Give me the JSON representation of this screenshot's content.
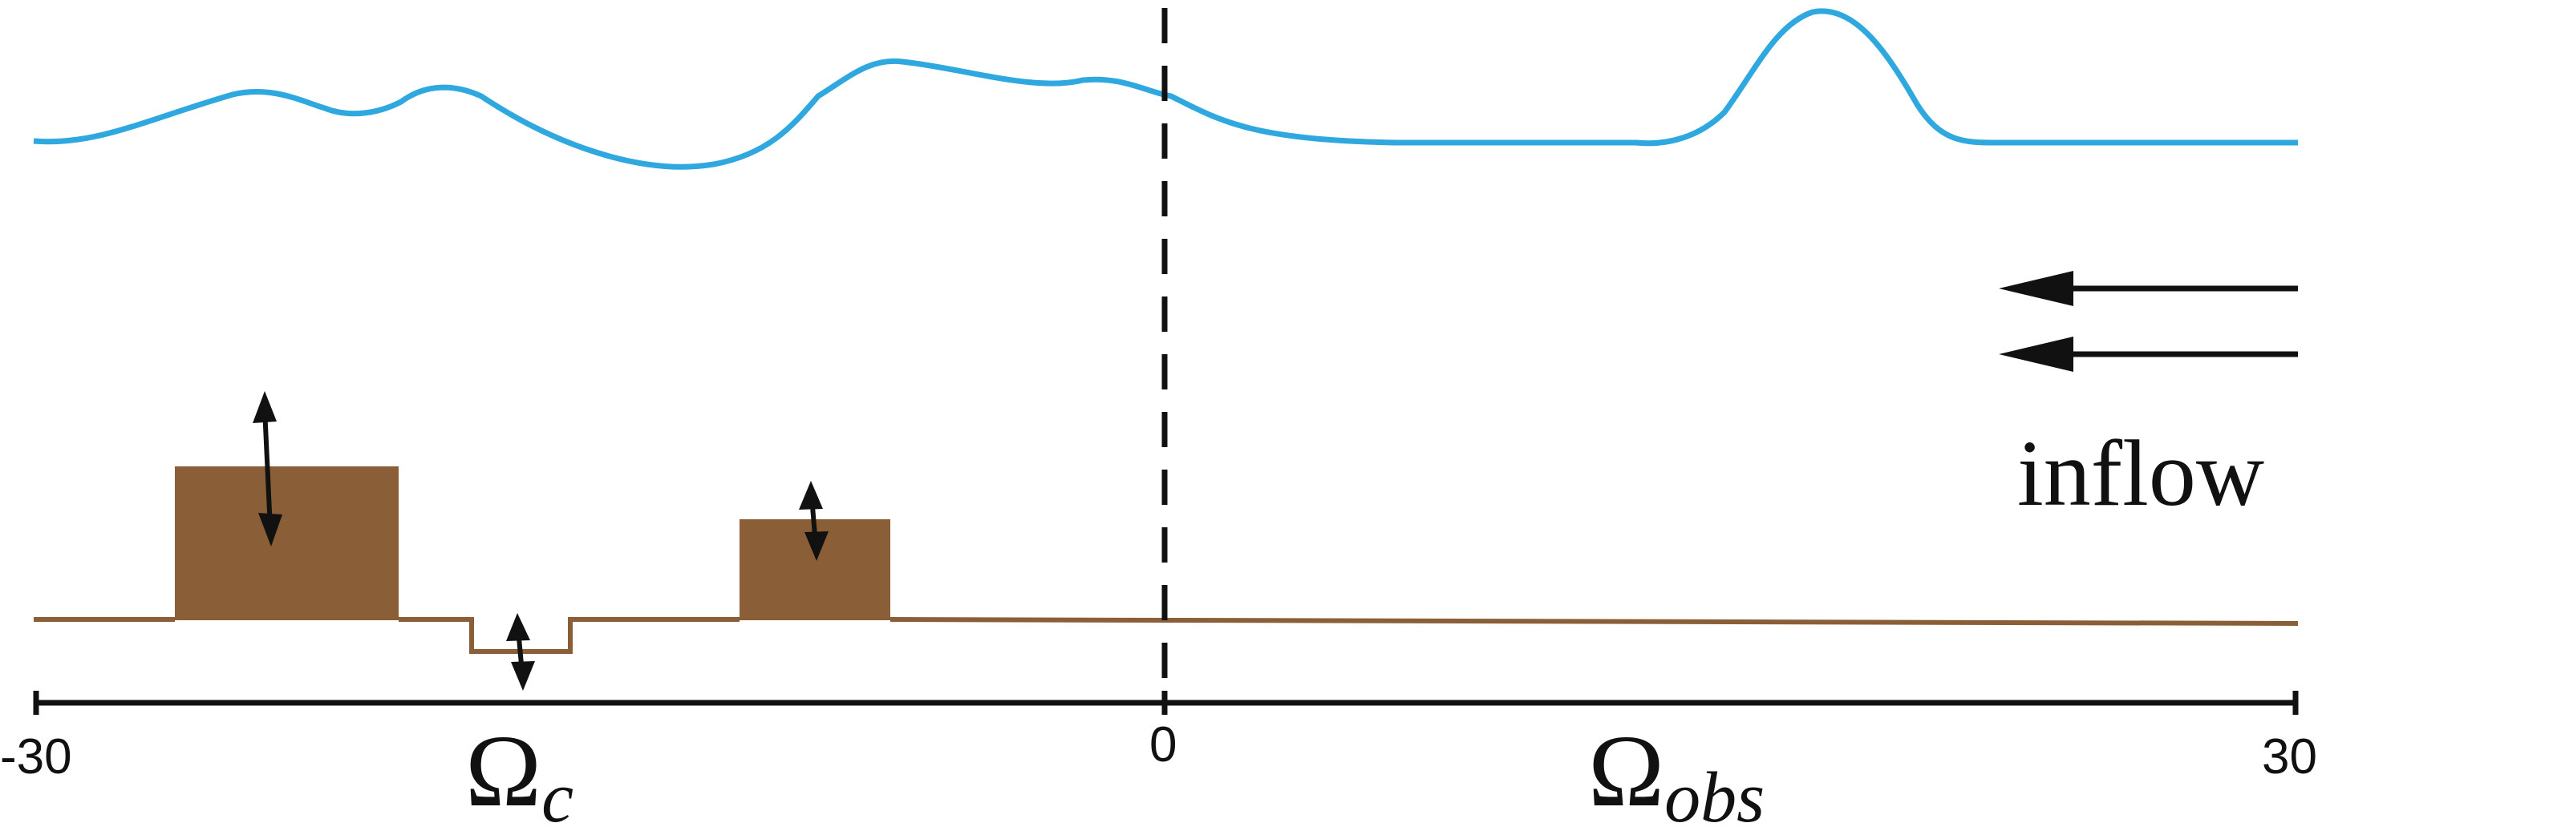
{
  "axis": {
    "min_label": "-30",
    "mid_label": "0",
    "max_label": "30",
    "x_range": [
      -30,
      30
    ]
  },
  "regions": {
    "control": {
      "symbol": "Ω",
      "subscript": "c"
    },
    "observation": {
      "symbol": "Ω",
      "subscript": "obs"
    }
  },
  "inflow": {
    "label": "inflow",
    "arrow_count": 2
  },
  "colors": {
    "surface": "#2ea8df",
    "bottom": "#8a5f38",
    "ink": "#111111"
  },
  "obstacles": [
    {
      "kind": "raised-block",
      "movable": true
    },
    {
      "kind": "trench",
      "movable": true
    },
    {
      "kind": "raised-block",
      "movable": true
    }
  ]
}
